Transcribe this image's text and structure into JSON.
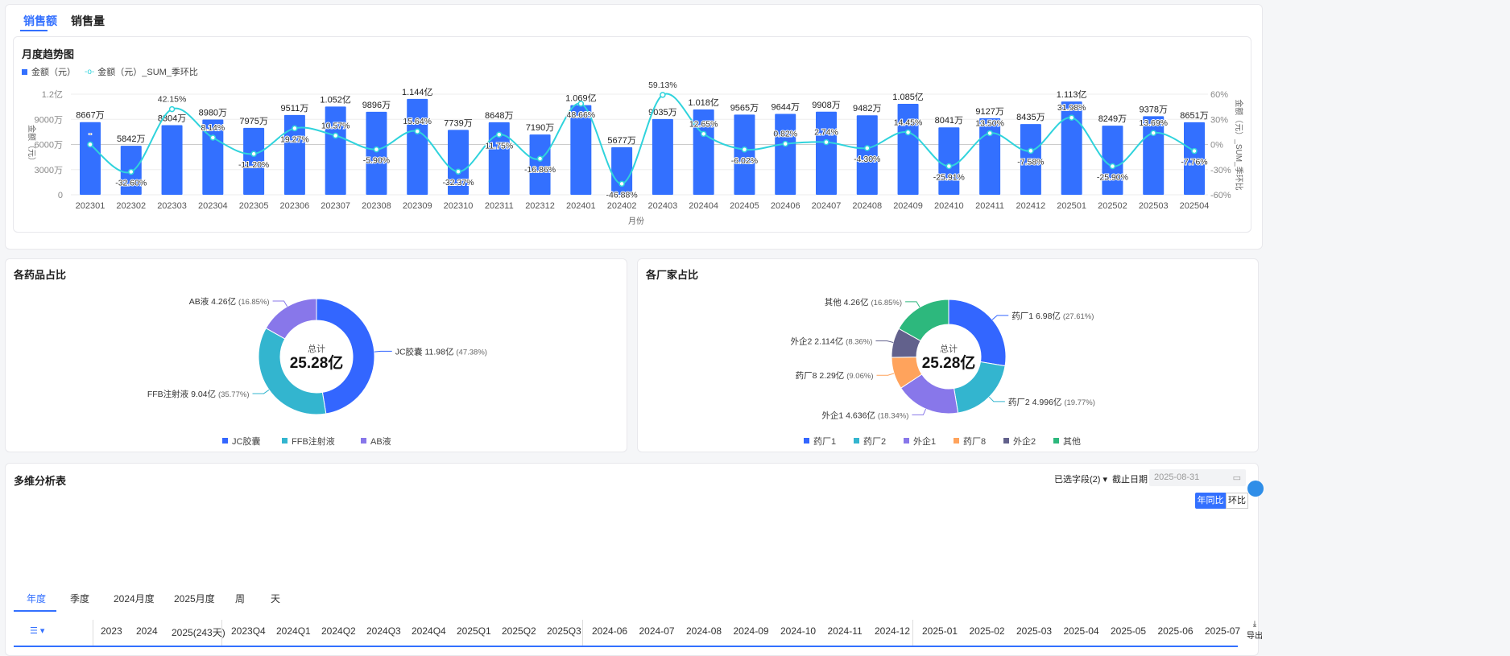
{
  "tabs": [
    {
      "label": "销售额",
      "active": true
    },
    {
      "label": "销售量",
      "active": false
    }
  ],
  "trend": {
    "title": "月度趋势图",
    "legend_bar": "金额（元）",
    "legend_line": "金额（元）_SUM_季环比"
  },
  "chart_data": {
    "type": "bar+line",
    "title": "月度趋势图",
    "xlabel": "月份",
    "ylabel": "金额（元）",
    "y2label": "金额（元）_SUM_季环比",
    "yticks": [
      "0",
      "3000万",
      "6000万",
      "9000万",
      "1.2亿"
    ],
    "ylim": [
      0,
      12000
    ],
    "y2ticks": [
      "-60%",
      "-30%",
      "0%",
      "30%",
      "60%"
    ],
    "y2lim": [
      -60,
      60
    ],
    "categories": [
      "202301",
      "202302",
      "202303",
      "202304",
      "202305",
      "202306",
      "202307",
      "202308",
      "202309",
      "202310",
      "202311",
      "202312",
      "202401",
      "202402",
      "202403",
      "202404",
      "202405",
      "202406",
      "202407",
      "202408",
      "202409",
      "202410",
      "202411",
      "202412",
      "202501",
      "202502",
      "202503",
      "202504"
    ],
    "series": [
      {
        "name": "金额（元）",
        "unit": "万",
        "values": [
          8667,
          5842,
          8304,
          8980,
          7975,
          9511,
          10520,
          9896,
          11440,
          7739,
          8648,
          7190,
          10690,
          5677,
          9035,
          10180,
          9565,
          9644,
          9908,
          9482,
          10850,
          8041,
          9127,
          8435,
          11130,
          8249,
          9378,
          8651
        ],
        "labels": [
          "8667万",
          "5842万",
          "8304万",
          "8980万",
          "7975万",
          "9511万",
          "1.052亿",
          "9896万",
          "1.144亿",
          "7739万",
          "8648万",
          "7190万",
          "1.069亿",
          "5677万",
          "9035万",
          "1.018亿",
          "9565万",
          "9644万",
          "9908万",
          "9482万",
          "1.085亿",
          "8041万",
          "9127万",
          "8435万",
          "1.113亿",
          "8249万",
          "9378万",
          "8651万"
        ]
      },
      {
        "name": "金额（元）_SUM_季环比",
        "unit": "%",
        "values": [
          null,
          -32.6,
          42.15,
          8.14,
          -11.2,
          19.27,
          10.57,
          -5.9,
          15.64,
          -32.37,
          11.75,
          -16.86,
          48.66,
          -46.88,
          59.13,
          12.65,
          -6.02,
          0.82,
          2.74,
          -4.3,
          14.45,
          -25.91,
          13.5,
          -7.58,
          31.98,
          -25.9,
          13.69,
          -7.76
        ],
        "labels": [
          "-",
          "-32.60%",
          "42.15%",
          "8.14%",
          "-11.20%",
          "19.27%",
          "10.57%",
          "-5.90%",
          "15.64%",
          "-32.37%",
          "11.75%",
          "-16.86%",
          "48.66%",
          "-46.88%",
          "59.13%",
          "12.65%",
          "-6.02%",
          "0.82%",
          "2.74%",
          "-4.30%",
          "14.45%",
          "-25.91%",
          "13.50%",
          "-7.58%",
          "31.98%",
          "-25.90%",
          "13.69%",
          "-7.76%"
        ]
      }
    ],
    "colors": {
      "bar": "#3370ff",
      "line": "#2fd3dc"
    }
  },
  "pies": [
    {
      "title": "各药品占比",
      "center_label": "总计",
      "center_value": "25.28亿",
      "slices": [
        {
          "name": "JC胶囊",
          "value": "11.98亿",
          "pct": 47.38,
          "pct_label": "(47.38%)",
          "color": "#3366ff"
        },
        {
          "name": "FFB注射液",
          "value": "9.04亿",
          "pct": 35.77,
          "pct_label": "(35.77%)",
          "color": "#33b5cf"
        },
        {
          "name": "AB液",
          "value": "4.26亿",
          "pct": 16.85,
          "pct_label": "(16.85%)",
          "color": "#8877ea"
        }
      ]
    },
    {
      "title": "各厂家占比",
      "center_label": "总计",
      "center_value": "25.28亿",
      "slices": [
        {
          "name": "药厂1",
          "value": "6.98亿",
          "pct": 27.61,
          "pct_label": "(27.61%)",
          "color": "#3366ff"
        },
        {
          "name": "药厂2",
          "value": "4.996亿",
          "pct": 19.77,
          "pct_label": "(19.77%)",
          "color": "#33b5cf"
        },
        {
          "name": "外企1",
          "value": "4.636亿",
          "pct": 18.34,
          "pct_label": "(18.34%)",
          "color": "#8877ea"
        },
        {
          "name": "药厂8",
          "value": "2.29亿",
          "pct": 9.06,
          "pct_label": "(9.06%)",
          "color": "#ffa35c"
        },
        {
          "name": "外企2",
          "value": "2.114亿",
          "pct": 8.36,
          "pct_label": "(8.36%)",
          "color": "#62618c"
        },
        {
          "name": "其他",
          "value": "4.26亿",
          "pct": 16.85,
          "pct_label": "(16.85%)",
          "color": "#2db87d"
        }
      ]
    }
  ],
  "table": {
    "title": "多维分析表",
    "fields_selector": "已选字段(2)",
    "date_label": "截止日期",
    "date_value": "2025-08-31",
    "tabs": [
      "年度",
      "季度",
      "2024月度",
      "2025月度",
      "周",
      "天"
    ],
    "compare": [
      "年同比",
      "环比"
    ],
    "export": "导出",
    "groups": [
      [
        "2023",
        "2024",
        "2025(243天)"
      ],
      [
        "2023Q4",
        "2024Q1",
        "2024Q2",
        "2024Q3",
        "2024Q4",
        "2025Q1",
        "2025Q2",
        "2025Q3"
      ],
      [
        "2024-06",
        "2024-07",
        "2024-08",
        "2024-09",
        "2024-10",
        "2024-11",
        "2024-12"
      ],
      [
        "2025-01",
        "2025-02",
        "2025-03",
        "2025-04",
        "2025-05",
        "2025-06",
        "2025-07"
      ]
    ]
  }
}
